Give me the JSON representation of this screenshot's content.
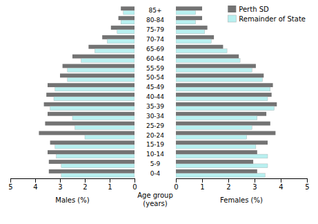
{
  "chart_data": [
    {
      "type": "bar",
      "orientation": "horizontal",
      "categories": [
        "0-4",
        "5-9",
        "10-14",
        "15-19",
        "20-24",
        "25-29",
        "30-34",
        "35-39",
        "40-44",
        "45-49",
        "50-54",
        "55-59",
        "60-64",
        "65-69",
        "70-74",
        "75-79",
        "80-84",
        "85+"
      ],
      "xlabel": "Males (%)",
      "ylabel": "Age group\n(years)",
      "series": [
        {
          "name": "Perth SD",
          "color": "#737373",
          "values": [
            3.45,
            3.45,
            3.5,
            3.4,
            3.85,
            3.6,
            3.5,
            3.65,
            3.55,
            3.5,
            3.0,
            2.9,
            2.5,
            1.85,
            1.3,
            0.95,
            0.65,
            0.55
          ]
        },
        {
          "name": "Remainder of State",
          "color": "#b8f0f0",
          "values": [
            2.95,
            2.95,
            3.15,
            3.2,
            2.0,
            2.4,
            2.5,
            3.4,
            3.25,
            3.2,
            2.7,
            2.7,
            2.15,
            1.6,
            1.1,
            0.7,
            0.55,
            0.45
          ]
        }
      ],
      "xlim": [
        5,
        0
      ],
      "xticks": [
        0,
        1,
        2,
        3,
        4,
        5
      ],
      "legend": false,
      "grid": false
    },
    {
      "type": "bar",
      "orientation": "horizontal",
      "categories": [
        "0-4",
        "5-9",
        "10-14",
        "15-19",
        "20-24",
        "25-29",
        "30-34",
        "35-39",
        "40-44",
        "45-49",
        "50-54",
        "55-59",
        "60-64",
        "65-69",
        "70-74",
        "75-79",
        "80-84",
        "85+"
      ],
      "xlabel": "Females (%)",
      "series": [
        {
          "name": "Perth SD",
          "color": "#737373",
          "values": [
            3.1,
            2.95,
            3.1,
            3.5,
            3.8,
            3.6,
            3.45,
            3.85,
            3.65,
            3.7,
            3.35,
            3.05,
            2.4,
            1.8,
            1.45,
            1.2,
            1.0,
            1.0
          ]
        },
        {
          "name": "Remainder of State",
          "color": "#b8f0f0",
          "values": [
            3.4,
            3.5,
            3.5,
            3.05,
            2.7,
            2.9,
            3.1,
            3.75,
            3.5,
            3.6,
            3.3,
            2.9,
            2.45,
            1.95,
            1.35,
            1.1,
            0.75,
            0.75
          ]
        }
      ],
      "xlim": [
        0,
        5
      ],
      "xticks": [
        0,
        1,
        2,
        3,
        4,
        5
      ],
      "legend": "upper right",
      "grid": false
    }
  ]
}
